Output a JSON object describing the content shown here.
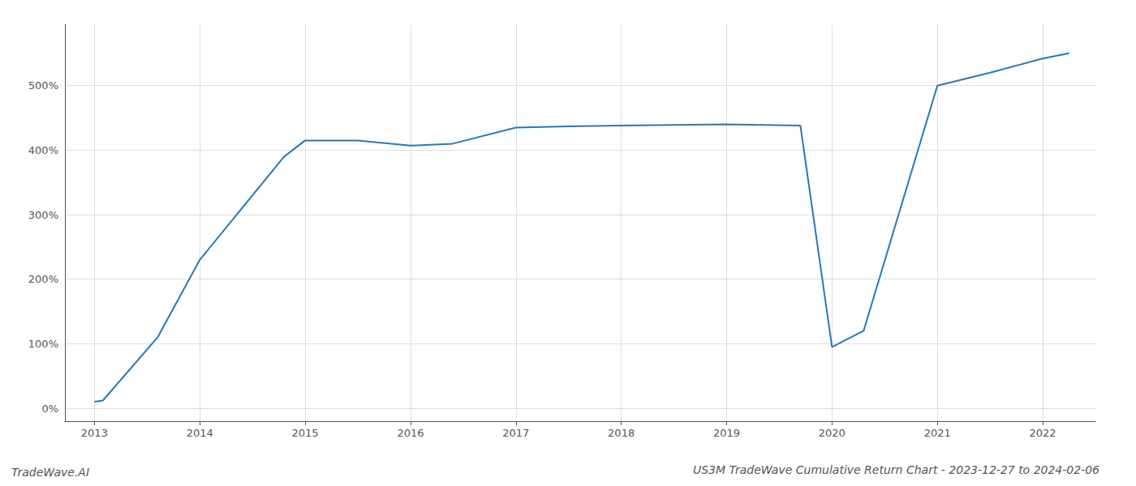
{
  "chart_data": {
    "type": "line",
    "title": "US3M TradeWave Cumulative Return Chart - 2023-12-27 to 2024-02-06",
    "annotations": [
      "TradeWave.AI"
    ],
    "x": [
      2013.0,
      2013.08,
      2013.6,
      2014.0,
      2014.8,
      2015.0,
      2015.5,
      2016.0,
      2016.4,
      2017.0,
      2017.5,
      2018.0,
      2018.5,
      2019.0,
      2019.7,
      2020.0,
      2020.3,
      2021.0,
      2021.5,
      2022.0,
      2022.25
    ],
    "values": [
      0.1,
      0.12,
      1.1,
      2.3,
      3.9,
      4.15,
      4.15,
      4.07,
      4.1,
      4.35,
      4.37,
      4.38,
      4.39,
      4.4,
      4.38,
      0.95,
      1.2,
      5.0,
      5.2,
      5.42,
      5.5
    ],
    "color": "#2878b8",
    "xlim": [
      2012.72,
      2022.5
    ],
    "ylim": [
      -0.2,
      5.95
    ],
    "xticks": [
      2013,
      2014,
      2015,
      2016,
      2017,
      2018,
      2019,
      2020,
      2021,
      2022
    ],
    "yticks": [
      {
        "value": 0,
        "label": "0%"
      },
      {
        "value": 1,
        "label": "100%"
      },
      {
        "value": 2,
        "label": "200%"
      },
      {
        "value": 3,
        "label": "300%"
      },
      {
        "value": 4,
        "label": "400%"
      },
      {
        "value": 5,
        "label": "500%"
      }
    ],
    "grid": true
  }
}
